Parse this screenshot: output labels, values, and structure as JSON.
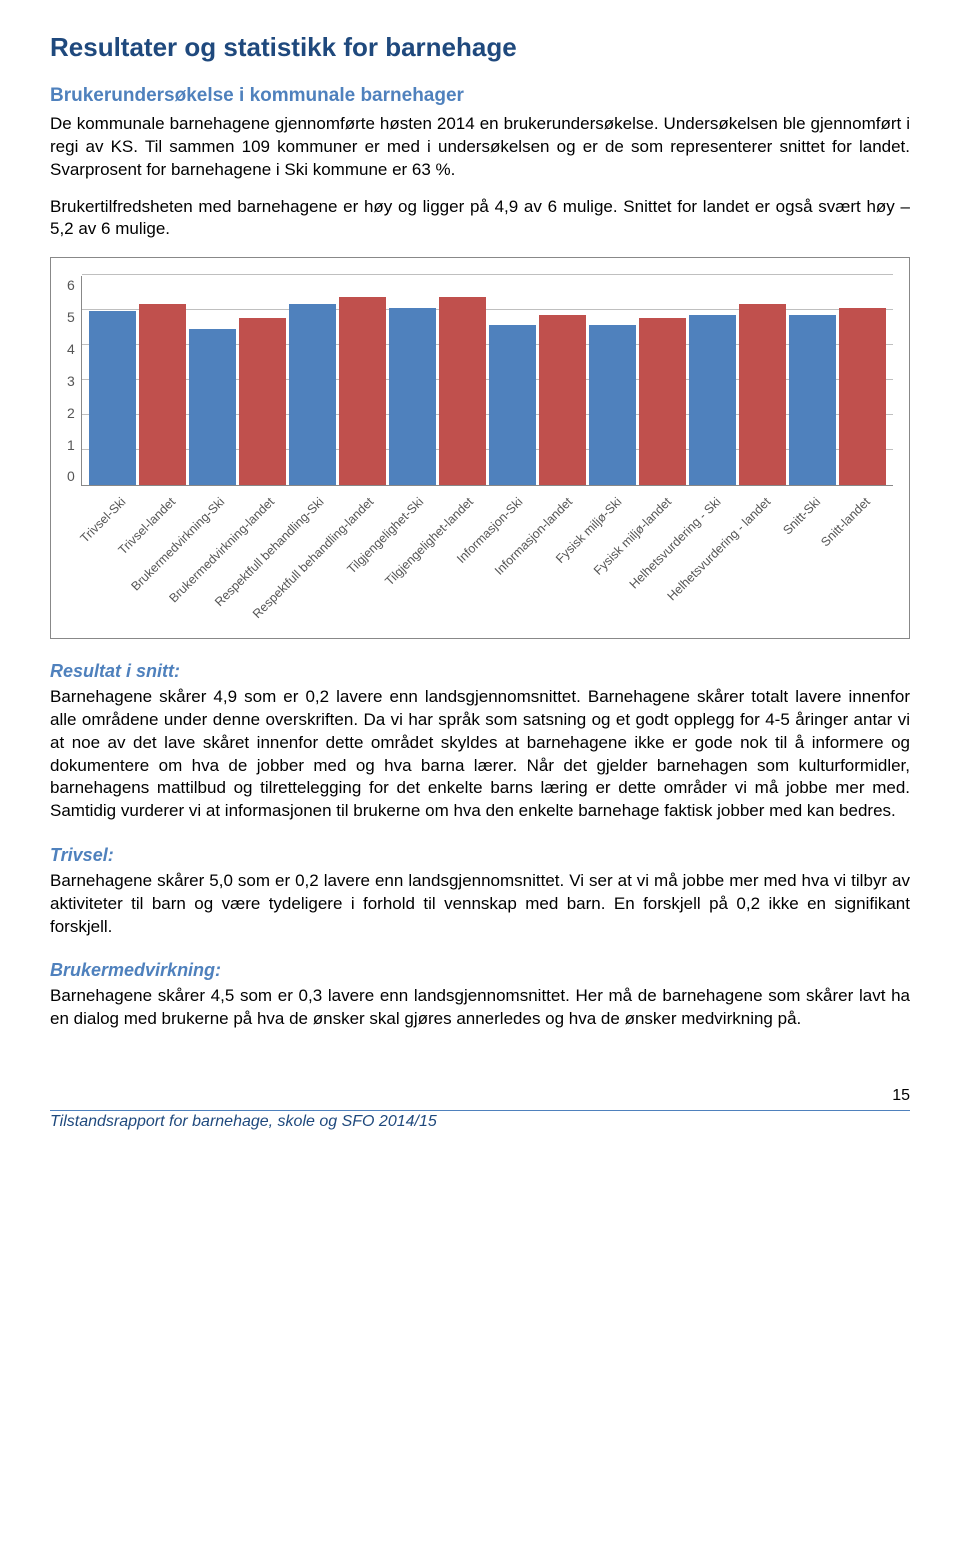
{
  "title": "Resultater og statistikk for barnehage",
  "sections": {
    "intro": {
      "heading": "Brukerundersøkelse i kommunale barnehager",
      "p1": "De kommunale barnehagene gjennomførte høsten 2014 en brukerundersøkelse. Undersøkelsen ble gjennomført i regi av KS. Til sammen 109 kommuner er med i undersøkelsen og er de som representerer snittet for landet. Svarprosent for barnehagene i Ski kommune er 63 %.",
      "p2": "Brukertilfredsheten med barnehagene er høy og ligger på 4,9 av 6 mulige. Snittet for landet er også svært høy – 5,2 av 6 mulige."
    },
    "resultat": {
      "heading": "Resultat i snitt:",
      "text": "Barnehagene skårer 4,9 som er 0,2 lavere enn landsgjennomsnittet. Barnehagene skårer totalt lavere innenfor alle områdene under denne overskriften. Da vi har språk som satsning og et godt opplegg for 4-5 åringer antar vi at noe av det lave skåret innenfor dette området skyldes at barnehagene ikke er gode nok til å informere og dokumentere om hva de jobber med og hva barna lærer. Når det gjelder barnehagen som kulturformidler, barnehagens mattilbud og tilrettelegging for det enkelte barns læring er dette områder vi må jobbe mer med.  Samtidig vurderer vi at informasjonen til brukerne om hva den enkelte barnehage faktisk jobber med kan bedres."
    },
    "trivsel": {
      "heading": "Trivsel:",
      "text": "Barnehagene skårer 5,0 som er 0,2 lavere enn landsgjennomsnittet. Vi ser at vi må jobbe mer med hva vi tilbyr av aktiviteter til barn og være tydeligere i forhold til vennskap med barn. En forskjell på 0,2 ikke en signifikant forskjell."
    },
    "bruker": {
      "heading": "Brukermedvirkning:",
      "text": "Barnehagene skårer 4,5 som er 0,3 lavere enn landsgjennomsnittet. Her må de barnehagene som skårer lavt ha en dialog med brukerne på hva de ønsker skal gjøres annerledes og hva de ønsker medvirkning på."
    }
  },
  "chart": {
    "type": "bar",
    "ylim": [
      0,
      6
    ],
    "ytick_step": 1,
    "yticks": [
      "0",
      "1",
      "2",
      "3",
      "4",
      "5",
      "6"
    ],
    "grid_color": "#bfbfbf",
    "background": "#ffffff",
    "series_colors": {
      "ski": "#4f81bd",
      "landet": "#c0504d"
    },
    "bars": [
      {
        "label": "Trivsel-Ski",
        "value": 5.0,
        "color": "#4f81bd"
      },
      {
        "label": "Trivsel-landet",
        "value": 5.2,
        "color": "#c0504d"
      },
      {
        "label": "Brukermedvirkning-Ski",
        "value": 4.5,
        "color": "#4f81bd"
      },
      {
        "label": "Brukermedvirkning-landet",
        "value": 4.8,
        "color": "#c0504d"
      },
      {
        "label": "Respektfull behandling-Ski",
        "value": 5.2,
        "color": "#4f81bd"
      },
      {
        "label": "Respektfull behandling-landet",
        "value": 5.4,
        "color": "#c0504d"
      },
      {
        "label": "Tilgjengelighet-Ski",
        "value": 5.1,
        "color": "#4f81bd"
      },
      {
        "label": "Tilgjengelighet-landet",
        "value": 5.4,
        "color": "#c0504d"
      },
      {
        "label": "Informasjon-Ski",
        "value": 4.6,
        "color": "#4f81bd"
      },
      {
        "label": "Informasjon-landet",
        "value": 4.9,
        "color": "#c0504d"
      },
      {
        "label": "Fysisk miljø-Ski",
        "value": 4.6,
        "color": "#4f81bd"
      },
      {
        "label": "Fysisk miljø-landet",
        "value": 4.8,
        "color": "#c0504d"
      },
      {
        "label": "Helhetsvurdering - Ski",
        "value": 4.9,
        "color": "#4f81bd"
      },
      {
        "label": "Helhetsvurdering - landet",
        "value": 5.2,
        "color": "#c0504d"
      },
      {
        "label": "Snitt-Ski",
        "value": 4.9,
        "color": "#4f81bd"
      },
      {
        "label": "Snitt-landet",
        "value": 5.1,
        "color": "#c0504d"
      }
    ]
  },
  "footer": {
    "doc_title": "Tilstandsrapport for barnehage, skole og SFO 2014/15",
    "page": "15"
  }
}
